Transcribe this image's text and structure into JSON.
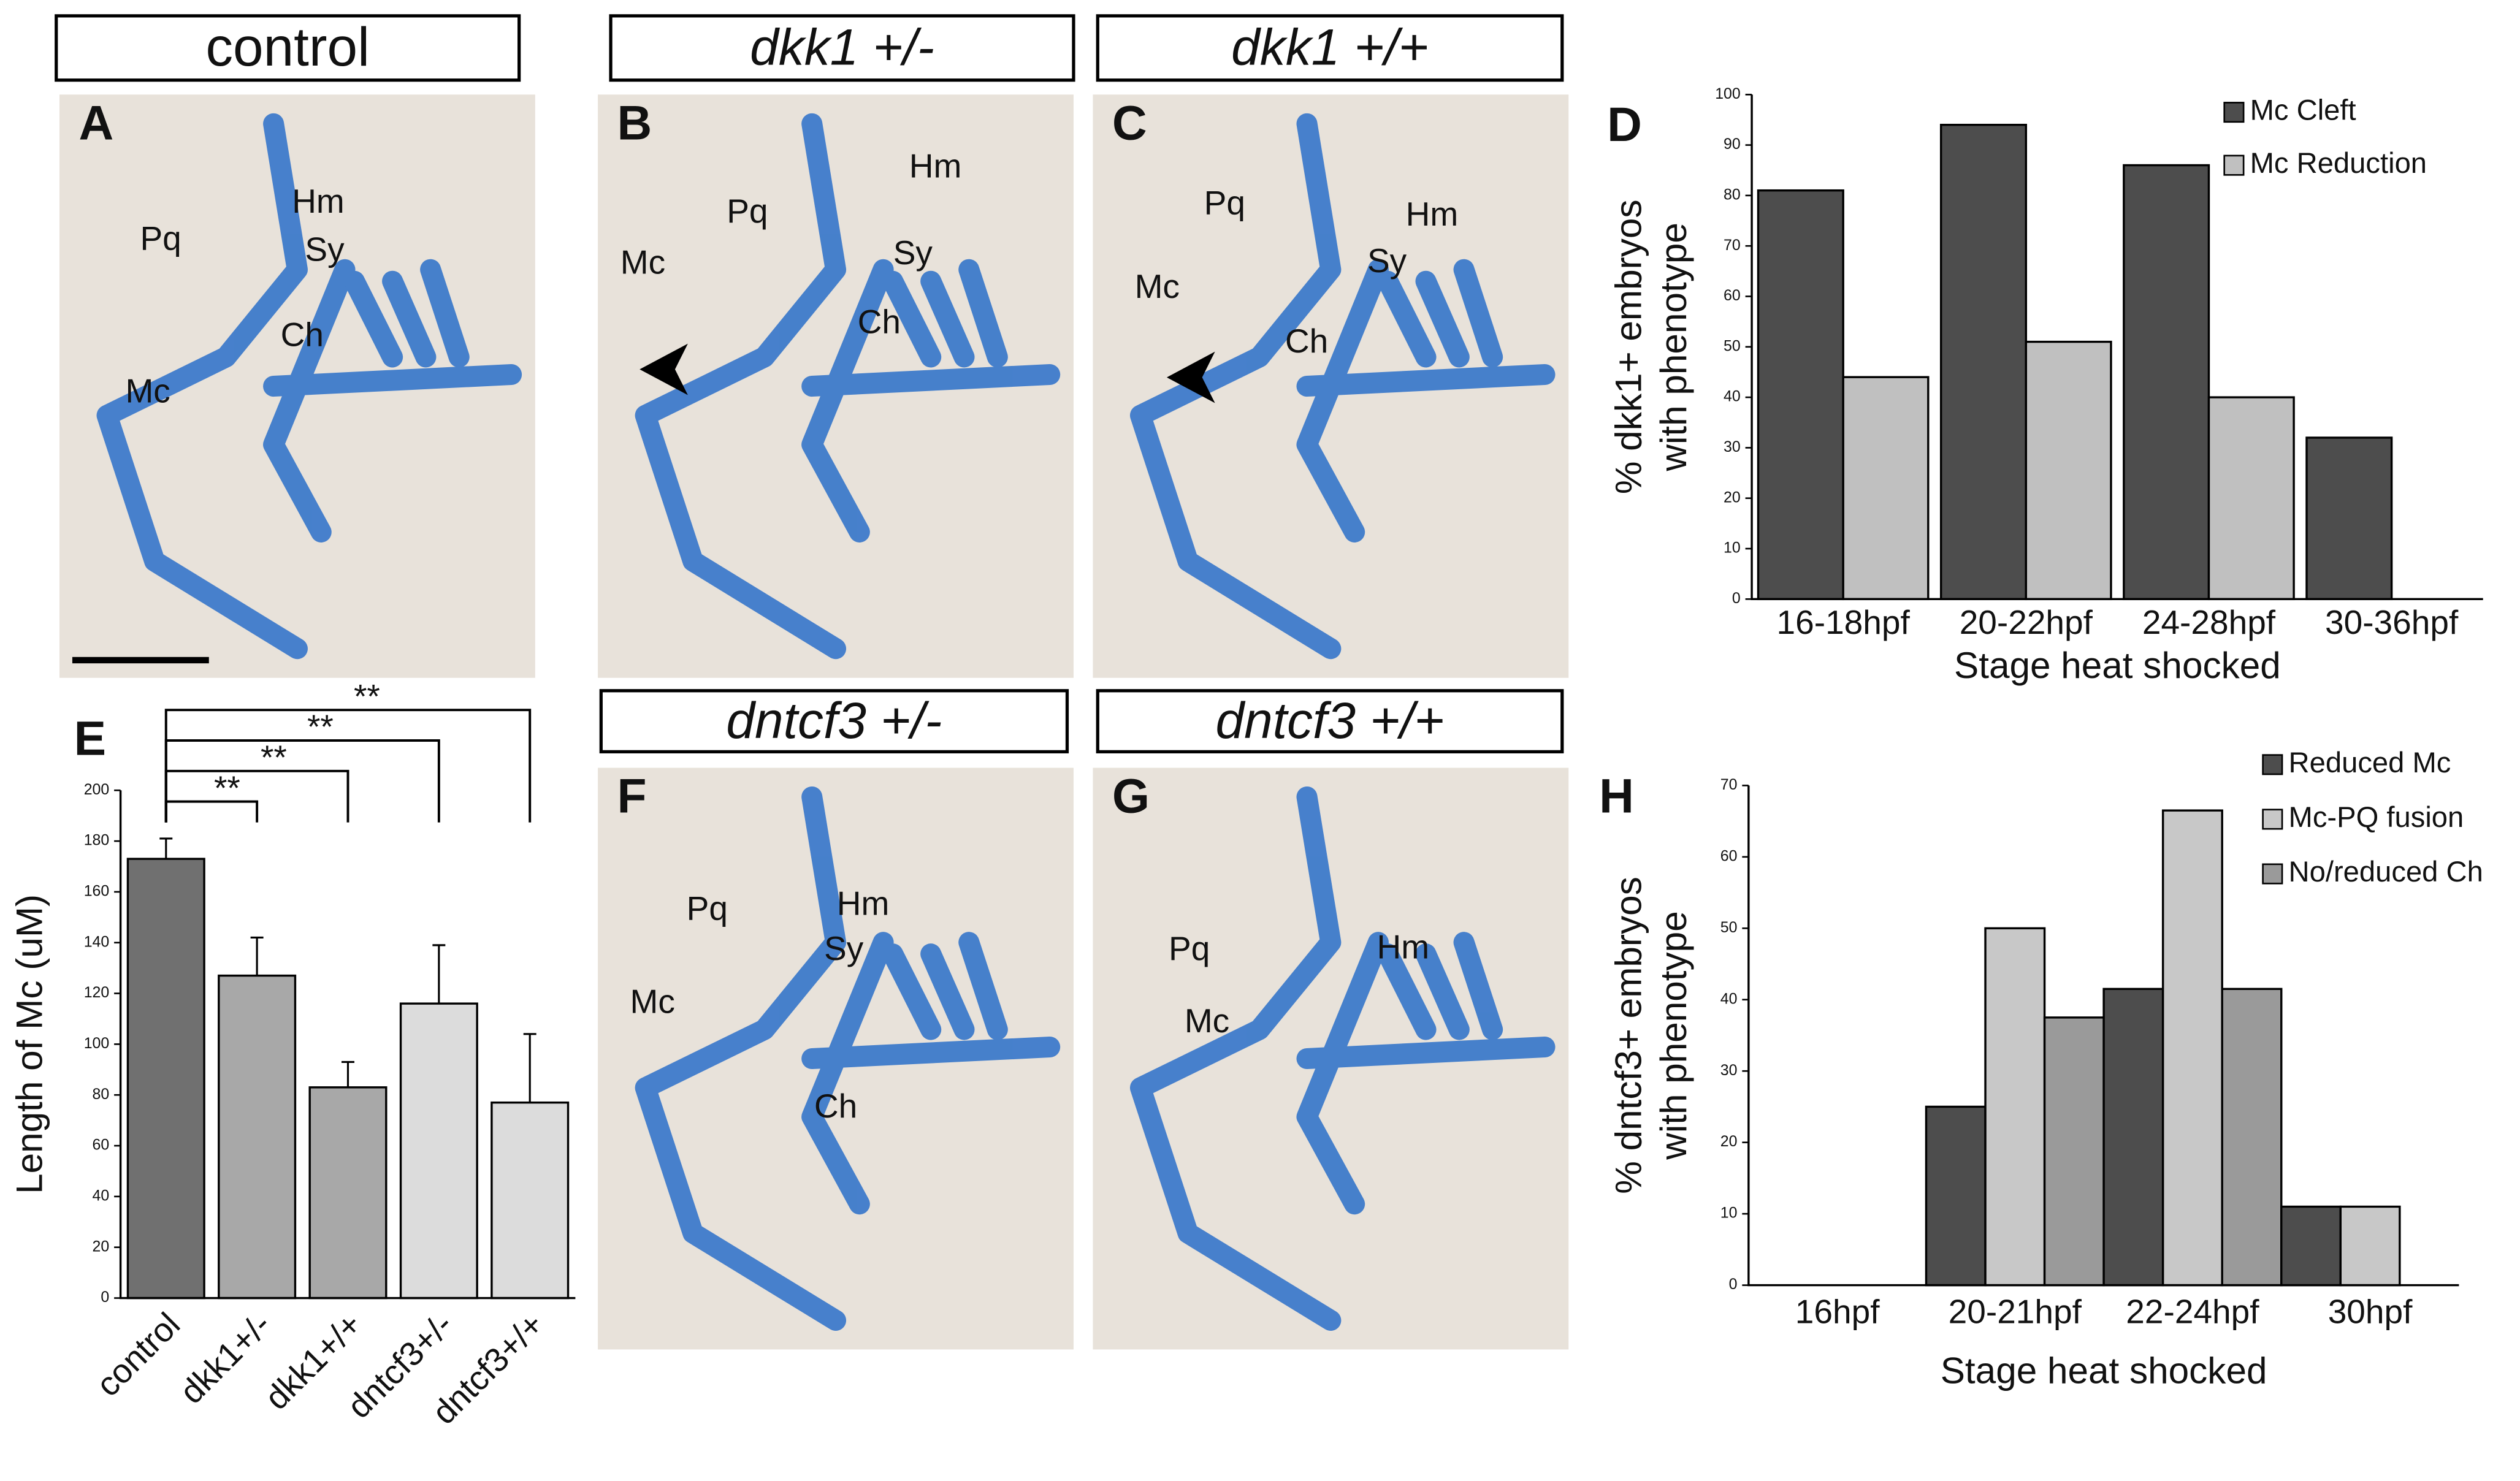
{
  "panels": [
    {
      "letter": "A",
      "title": "control",
      "labels": [
        "Pq",
        "Hm",
        "Sy",
        "Ch",
        "Mc"
      ]
    },
    {
      "letter": "B",
      "title": "dkk1 +/-",
      "labels": [
        "Hm",
        "Pq",
        "Sy",
        "Mc",
        "Ch"
      ]
    },
    {
      "letter": "C",
      "title": "dkk1 +/+",
      "labels": [
        "Pq",
        "Hm",
        "Sy",
        "Mc",
        "Ch"
      ]
    },
    {
      "letter": "F",
      "title": "dntcf3 +/-",
      "labels": [
        "Hm",
        "Pq",
        "Sy",
        "Mc",
        "Ch"
      ]
    },
    {
      "letter": "G",
      "title": "dntcf3 +/+",
      "labels": [
        "Pq",
        "Hm",
        "Mc"
      ]
    }
  ],
  "chart_data": [
    {
      "type": "bar",
      "letter": "D",
      "categories": [
        "16-18hpf",
        "20-22hpf",
        "24-28hpf",
        "30-36hpf"
      ],
      "series": [
        {
          "name": "Mc Cleft",
          "color": "#4d4d4d",
          "values": [
            81,
            94,
            86,
            32
          ]
        },
        {
          "name": "Mc Reduction",
          "color": "#c0c0c0",
          "values": [
            44,
            51,
            40,
            0
          ]
        }
      ],
      "ylim": [
        0,
        100
      ],
      "yticks": [
        0,
        10,
        20,
        30,
        40,
        50,
        60,
        70,
        80,
        90,
        100
      ],
      "ylabel": [
        "% dkk1+ embryos",
        "with phenotype"
      ],
      "xlabel": "Stage heat shocked"
    },
    {
      "type": "errorbar",
      "letter": "E",
      "categories": [
        "control",
        "dkk1+/-",
        "dkk1+/+",
        "dntcf3+/-",
        "dntcf3+/+"
      ],
      "values": [
        173,
        127,
        83,
        116,
        77
      ],
      "errors": [
        8,
        15,
        10,
        23,
        27
      ],
      "colors": [
        "#707070",
        "#a8a8a8",
        "#a8a8a8",
        "#dcdcdc",
        "#dcdcdc"
      ],
      "ylim": [
        0,
        200
      ],
      "yticks": [
        0,
        20,
        40,
        60,
        80,
        100,
        120,
        140,
        160,
        180,
        200
      ],
      "ylabel": "Length of Mc (uM)",
      "significance": [
        "**",
        "**",
        "**",
        "**"
      ]
    },
    {
      "type": "bar",
      "letter": "H",
      "categories": [
        "16hpf",
        "20-21hpf",
        "22-24hpf",
        "30hpf"
      ],
      "series": [
        {
          "name": "Reduced Mc",
          "color": "#4d4d4d",
          "values": [
            0,
            25,
            41.5,
            11
          ]
        },
        {
          "name": "Mc-PQ fusion",
          "color": "#c8c8c8",
          "values": [
            0,
            50,
            66.5,
            11
          ]
        },
        {
          "name": "No/reduced Ch",
          "color": "#9a9a9a",
          "values": [
            0,
            37.5,
            41.5,
            0
          ]
        }
      ],
      "ylim": [
        0,
        70
      ],
      "yticks": [
        0,
        10,
        20,
        30,
        40,
        50,
        60,
        70
      ],
      "ylabel": [
        "% dntcf3+ embryos",
        "with phenotype"
      ],
      "xlabel": "Stage heat shocked"
    }
  ]
}
